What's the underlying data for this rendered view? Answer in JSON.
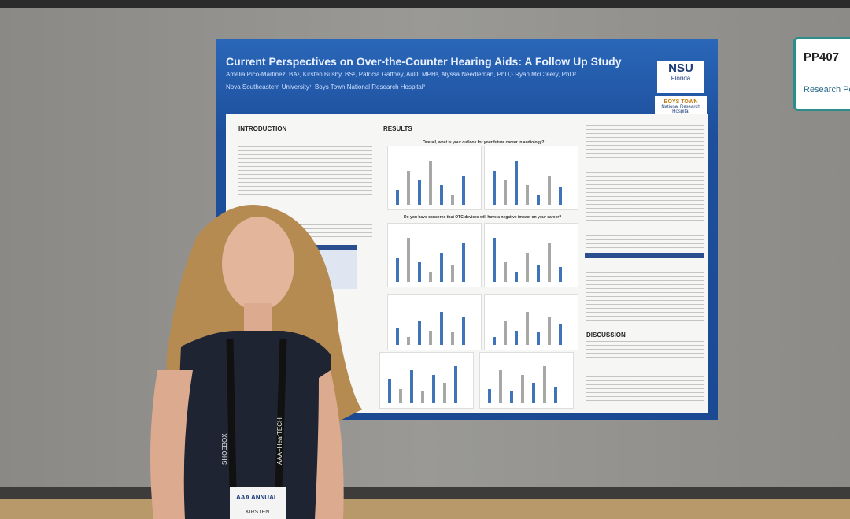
{
  "poster": {
    "title": "Current Perspectives on Over-the-Counter Hearing Aids: A Follow Up Study",
    "authors": "Amelia Pico-Martinez, BA¹, Kirsten Busby, BS¹, Patricia Gaffney, AuD, MPH¹, Alyssa Needleman, PhD,¹ Ryan McCreery, PhD²",
    "affiliations": "Nova Southeastern University¹, Boys Town National Research Hospital²",
    "logo": "NSU",
    "logo_sub": "Florida",
    "partner_logo": "BOYS TOWN",
    "partner_sub": "National Research Hospital",
    "sections": {
      "introduction": "INTRODUCTION",
      "results": "RESULTS",
      "discussion": "DISCUSSION"
    },
    "chart_titles": [
      "Overall, what is your outlook for your future career in audiology?",
      "Do you have concerns that OTC devices will have a negative impact on your career?"
    ]
  },
  "sign": {
    "code": "PP407",
    "label": "Research Po"
  },
  "lanyard": [
    "SHOEBOX",
    "AAA+HearTECH"
  ],
  "badge": {
    "event": "AAA ANNUAL",
    "name": "KIRSTEN"
  }
}
